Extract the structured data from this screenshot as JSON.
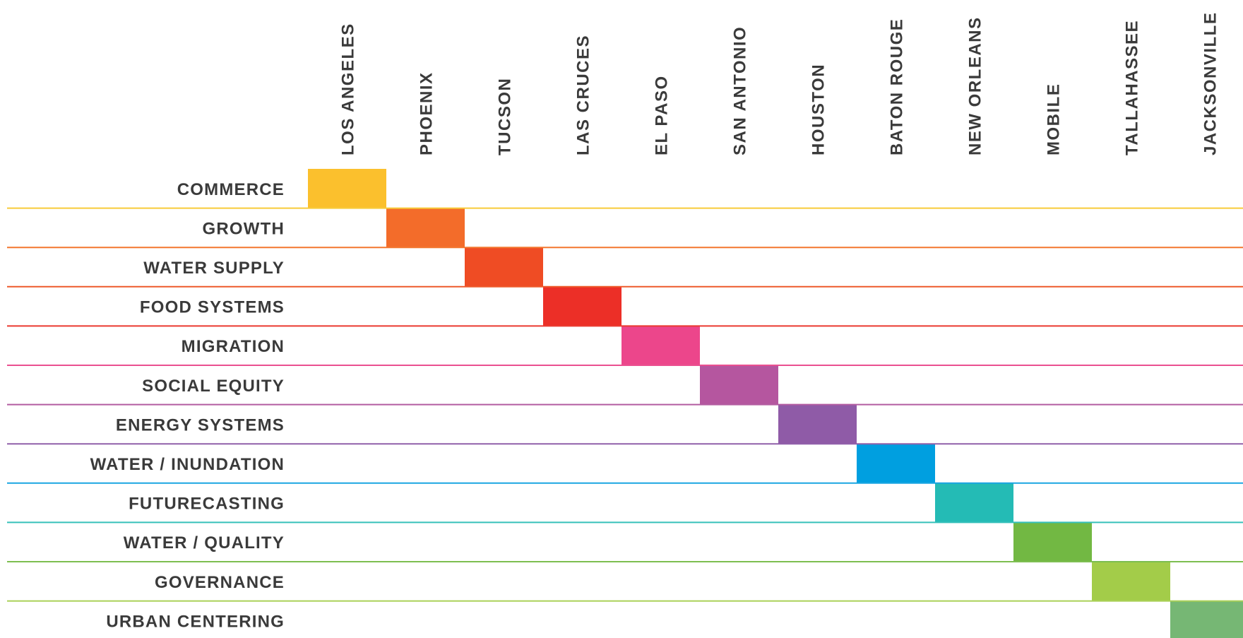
{
  "cities": [
    "LOS ANGELES",
    "PHOENIX",
    "TUCSON",
    "LAS CRUCES",
    "EL PASO",
    "SAN ANTONIO",
    "HOUSTON",
    "BATON ROUGE",
    "NEW ORLEANS",
    "MOBILE",
    "TALLAHASSEE",
    "JACKSONVILLE"
  ],
  "themes": [
    {
      "label": "COMMERCE",
      "color": "#FBC02D",
      "line_color": "#F8CB3A"
    },
    {
      "label": "GROWTH",
      "color": "#F36C2A",
      "line_color": "#F3772F"
    },
    {
      "label": "WATER SUPPLY",
      "color": "#EF4C24",
      "line_color": "#EE5A2C"
    },
    {
      "label": "FOOD SYSTEMS",
      "color": "#EC2F27",
      "line_color": "#EA3A30"
    },
    {
      "label": "MIGRATION",
      "color": "#EC468B",
      "line_color": "#EA5090"
    },
    {
      "label": "SOCIAL EQUITY",
      "color": "#B5569F",
      "line_color": "#B35CA1"
    },
    {
      "label": "ENERGY SYSTEMS",
      "color": "#8F5BA7",
      "line_color": "#9060AA"
    },
    {
      "label": "WATER / INUNDATION",
      "color": "#009FE0",
      "line_color": "#1AA6E2"
    },
    {
      "label": "FUTURECASTING",
      "color": "#24BBB5",
      "line_color": "#36C0BA"
    },
    {
      "label": "WATER / QUALITY",
      "color": "#72B843",
      "line_color": "#7DBE50"
    },
    {
      "label": "GOVERNANCE",
      "color": "#A3CC49",
      "line_color": "#AAD058"
    },
    {
      "label": "URBAN CENTERING",
      "color": "#76B774",
      "line_color": "#A9D58F"
    }
  ]
}
